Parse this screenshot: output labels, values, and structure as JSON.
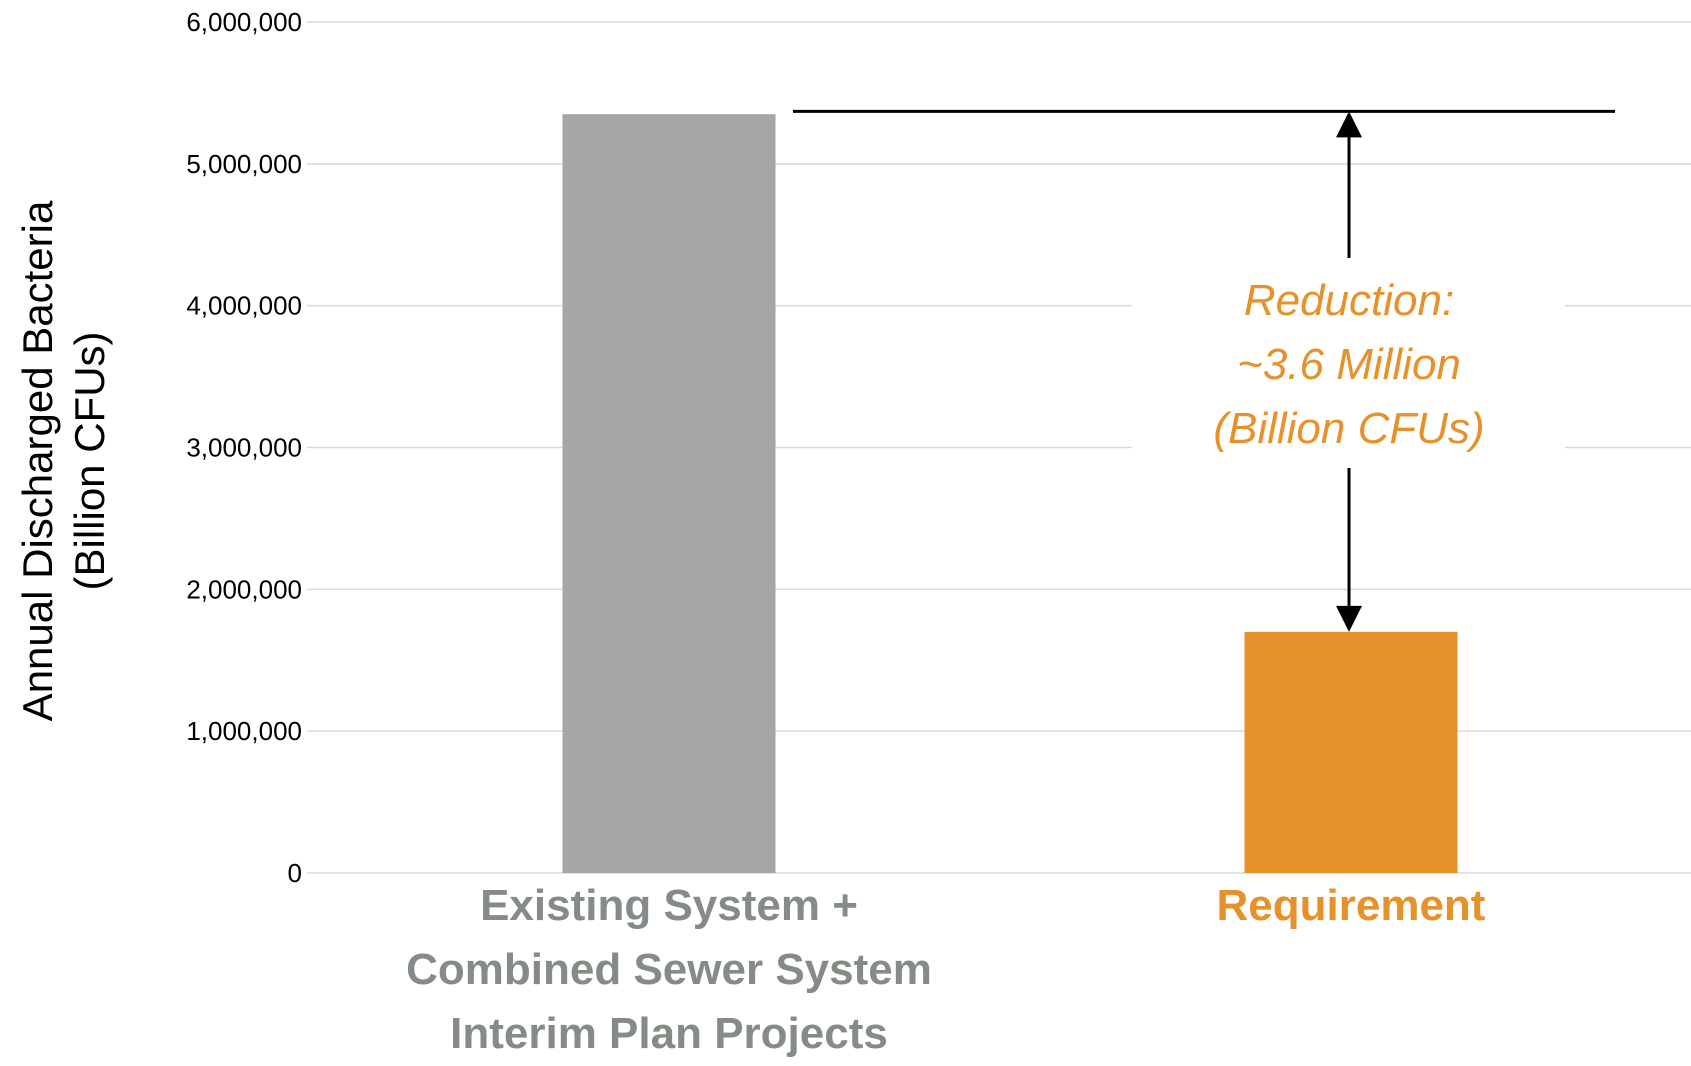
{
  "chart_data": {
    "type": "bar",
    "categories": [
      [
        "Existing System +",
        "Combined Sewer System",
        "Interim Plan Projects"
      ],
      [
        "Requirement"
      ]
    ],
    "values": [
      5350000,
      1700000
    ],
    "bar_colors": [
      "#a6a6a6",
      "#e6912a"
    ],
    "category_label_colors": [
      "#858c85",
      "#e6912a"
    ],
    "ylabel": [
      "Annual Discharged Bacteria",
      "(Billion CFUs)"
    ],
    "ylim": [
      0,
      6000000
    ],
    "yticks": [
      0,
      1000000,
      2000000,
      3000000,
      4000000,
      5000000,
      6000000
    ],
    "ytick_labels": [
      "0",
      "1,000,000",
      "2,000,000",
      "3,000,000",
      "4,000,000",
      "5,000,000",
      "6,000,000"
    ],
    "grid": true,
    "reference_line": {
      "value": 5370000
    },
    "annotation": {
      "lines": [
        "Reduction:",
        "~3.6 Million",
        "(Billion CFUs)"
      ],
      "color": "#e6912a",
      "arrow_from_value": 1700000,
      "arrow_to_value": 5370000
    }
  }
}
